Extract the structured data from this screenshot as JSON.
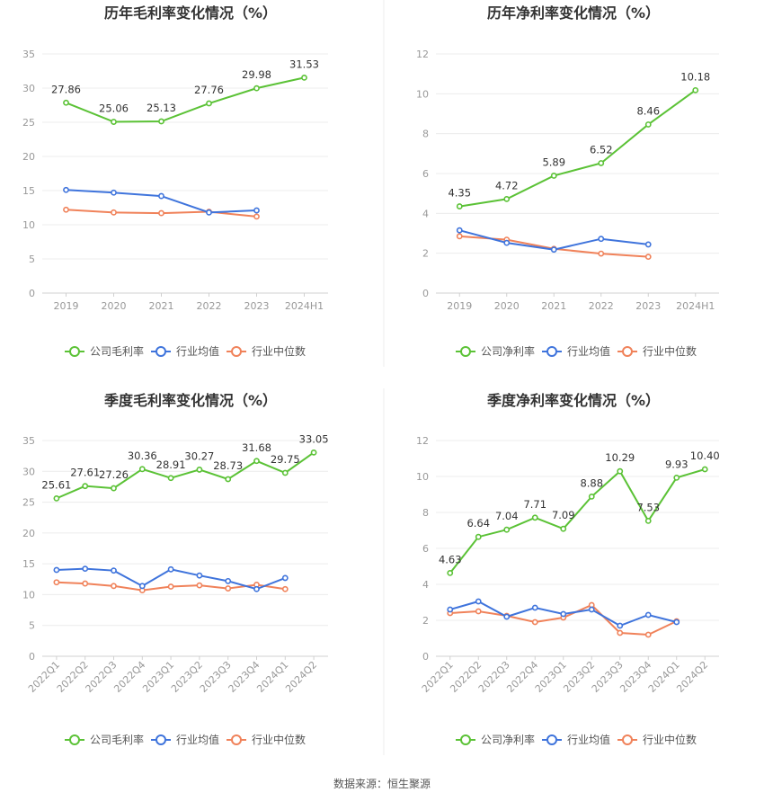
{
  "source_label": "数据来源：恒生聚源",
  "chart_data": [
    {
      "type": "line",
      "title": "历年毛利率变化情况（%）",
      "categories": [
        "2019",
        "2020",
        "2021",
        "2022",
        "2023",
        "2024H1"
      ],
      "ylim": [
        0,
        35
      ],
      "yticks": [
        0,
        5,
        10,
        15,
        20,
        25,
        30,
        35
      ],
      "grid": true,
      "legend_position": "bottom",
      "series": [
        {
          "name": "公司毛利率",
          "color": "#5bc236",
          "labels": true,
          "values": [
            27.86,
            25.06,
            25.13,
            27.76,
            29.98,
            31.53
          ]
        },
        {
          "name": "行业均值",
          "color": "#3f74dc",
          "values": [
            15.1,
            14.7,
            14.2,
            11.8,
            12.1,
            null
          ]
        },
        {
          "name": "行业中位数",
          "color": "#f0825a",
          "values": [
            12.2,
            11.8,
            11.7,
            11.9,
            11.2,
            null
          ]
        }
      ]
    },
    {
      "type": "line",
      "title": "历年净利率变化情况（%）",
      "categories": [
        "2019",
        "2020",
        "2021",
        "2022",
        "2023",
        "2024H1"
      ],
      "ylim": [
        0,
        12
      ],
      "yticks": [
        0,
        2,
        4,
        6,
        8,
        10,
        12
      ],
      "grid": true,
      "legend_position": "bottom",
      "series": [
        {
          "name": "公司净利率",
          "color": "#5bc236",
          "labels": true,
          "values": [
            4.35,
            4.72,
            5.89,
            6.52,
            8.46,
            10.18
          ]
        },
        {
          "name": "行业均值",
          "color": "#3f74dc",
          "values": [
            3.15,
            2.52,
            2.18,
            2.72,
            2.44,
            null
          ]
        },
        {
          "name": "行业中位数",
          "color": "#f0825a",
          "values": [
            2.85,
            2.68,
            2.22,
            1.98,
            1.82,
            null
          ]
        }
      ]
    },
    {
      "type": "line",
      "title": "季度毛利率变化情况（%）",
      "categories": [
        "2022Q1",
        "2022Q2",
        "2022Q3",
        "2022Q4",
        "2023Q1",
        "2023Q2",
        "2023Q3",
        "2023Q4",
        "2024Q1",
        "2024Q2"
      ],
      "ylim": [
        0,
        35
      ],
      "yticks": [
        0,
        5,
        10,
        15,
        20,
        25,
        30,
        35
      ],
      "grid": true,
      "legend_position": "bottom",
      "series": [
        {
          "name": "公司毛利率",
          "color": "#5bc236",
          "labels": true,
          "values": [
            25.61,
            27.61,
            27.26,
            30.36,
            28.91,
            30.27,
            28.73,
            31.68,
            29.75,
            33.05
          ]
        },
        {
          "name": "行业均值",
          "color": "#3f74dc",
          "values": [
            14.0,
            14.2,
            13.9,
            11.4,
            14.1,
            13.1,
            12.2,
            10.9,
            12.7,
            null
          ]
        },
        {
          "name": "行业中位数",
          "color": "#f0825a",
          "values": [
            12.0,
            11.8,
            11.4,
            10.7,
            11.3,
            11.5,
            11.0,
            11.6,
            10.9,
            null
          ]
        }
      ]
    },
    {
      "type": "line",
      "title": "季度净利率变化情况（%）",
      "categories": [
        "2022Q1",
        "2022Q2",
        "2022Q3",
        "2022Q4",
        "2023Q1",
        "2023Q2",
        "2023Q3",
        "2023Q4",
        "2024Q1",
        "2024Q2"
      ],
      "ylim": [
        0,
        12
      ],
      "yticks": [
        0,
        2,
        4,
        6,
        8,
        10,
        12
      ],
      "grid": true,
      "legend_position": "bottom",
      "series": [
        {
          "name": "公司净利率",
          "color": "#5bc236",
          "labels": true,
          "label_texts": [
            "4.63",
            "6.64",
            "7.04",
            "7.71",
            "7.09",
            "8.88",
            "10.29",
            "7.53",
            "9.93",
            "10.40"
          ],
          "values": [
            4.63,
            6.64,
            7.04,
            7.71,
            7.09,
            8.88,
            10.29,
            7.53,
            9.93,
            10.4
          ]
        },
        {
          "name": "行业均值",
          "color": "#3f74dc",
          "values": [
            2.6,
            3.05,
            2.2,
            2.7,
            2.35,
            2.6,
            1.7,
            2.3,
            1.9,
            null
          ]
        },
        {
          "name": "行业中位数",
          "color": "#f0825a",
          "values": [
            2.4,
            2.5,
            2.25,
            1.9,
            2.15,
            2.85,
            1.3,
            1.2,
            1.95,
            null
          ]
        }
      ]
    }
  ]
}
